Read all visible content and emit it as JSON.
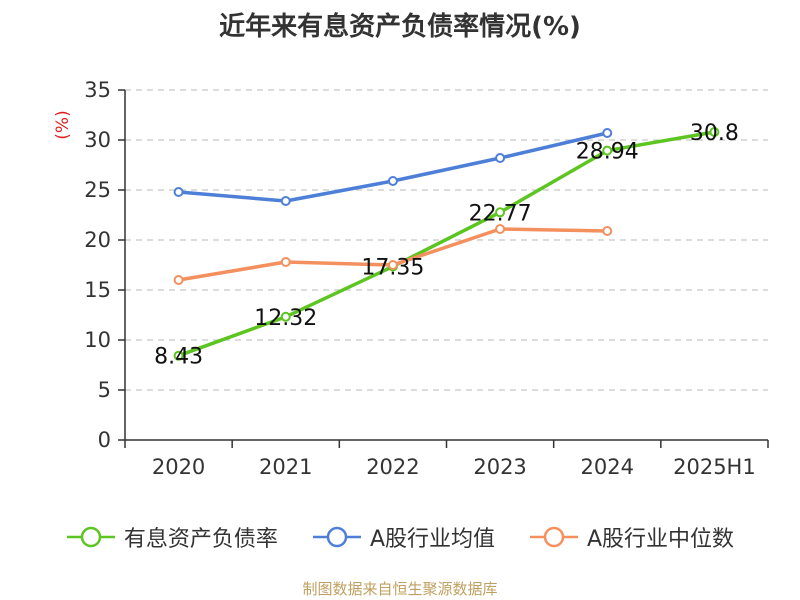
{
  "title": "近年来有息资产负债率情况(%)",
  "source": "制图数据来自恒生聚源数据库",
  "chart_data": {
    "type": "line",
    "ylabel": "(%)",
    "ylim": [
      0,
      35
    ],
    "yticks": [
      0,
      5,
      10,
      15,
      20,
      25,
      30,
      35
    ],
    "grid": true,
    "legend_position": "bottom",
    "categories": [
      "2020",
      "2021",
      "2022",
      "2023",
      "2024",
      "2025H1"
    ],
    "series": [
      {
        "name": "有息资产负债率",
        "color": "#5cc520",
        "values": [
          8.43,
          12.32,
          17.35,
          22.77,
          28.94,
          30.8
        ],
        "labels": [
          "8.43",
          "12.32",
          "17.35",
          "22.77",
          "28.94",
          "30.8"
        ],
        "show_labels": true
      },
      {
        "name": "A股行业均值",
        "color": "#4e7fd8",
        "values": [
          24.8,
          23.9,
          25.9,
          28.2,
          30.7,
          null
        ],
        "show_labels": false
      },
      {
        "name": "A股行业中位数",
        "color": "#f4905e",
        "values": [
          16.0,
          17.8,
          17.5,
          21.1,
          20.9,
          null
        ],
        "show_labels": false
      }
    ]
  }
}
